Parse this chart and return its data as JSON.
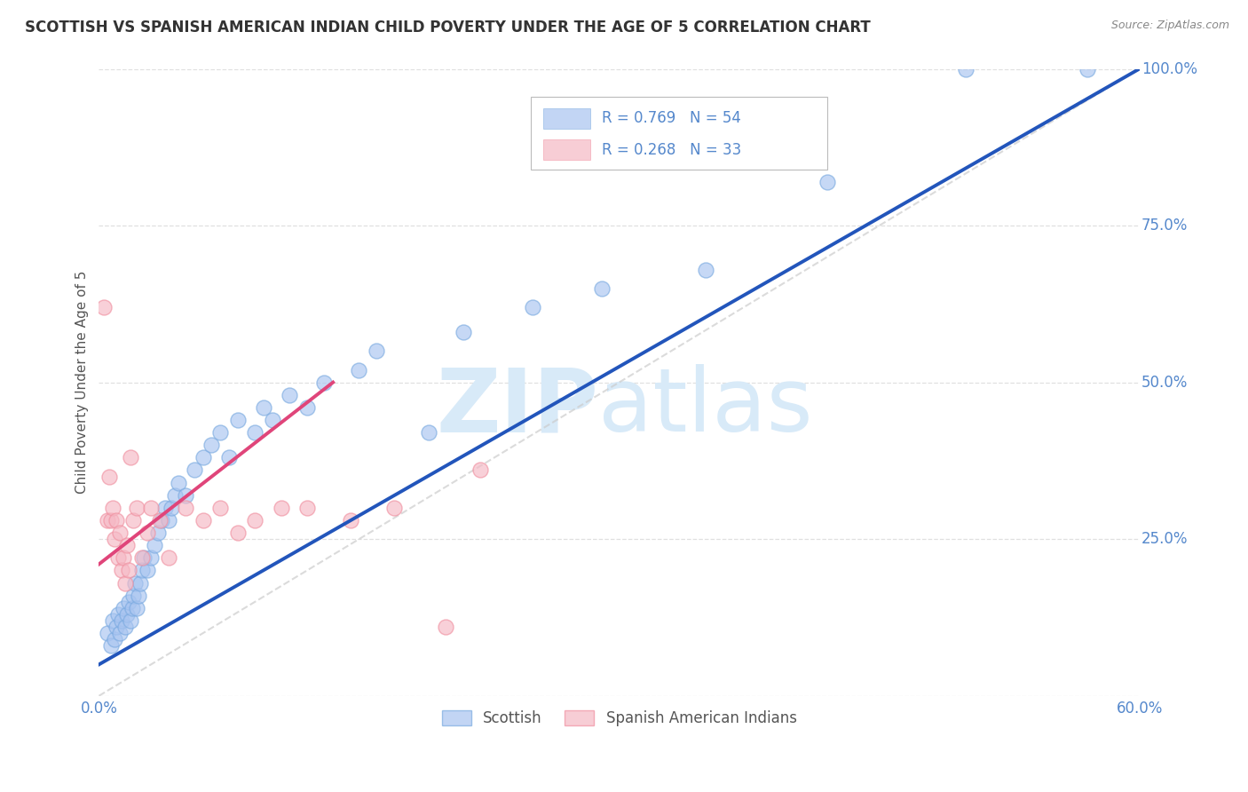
{
  "title": "SCOTTISH VS SPANISH AMERICAN INDIAN CHILD POVERTY UNDER THE AGE OF 5 CORRELATION CHART",
  "source": "Source: ZipAtlas.com",
  "ylabel": "Child Poverty Under the Age of 5",
  "xlim": [
    0,
    0.6
  ],
  "ylim": [
    0,
    1.0
  ],
  "xticks": [
    0.0,
    0.1,
    0.2,
    0.3,
    0.4,
    0.5,
    0.6
  ],
  "xticklabels": [
    "0.0%",
    "",
    "",
    "",
    "",
    "",
    "60.0%"
  ],
  "yticks": [
    0.0,
    0.25,
    0.5,
    0.75,
    1.0
  ],
  "yticklabels_right": [
    "",
    "25.0%",
    "50.0%",
    "75.0%",
    "100.0%"
  ],
  "legend_entry1": "R = 0.769   N = 54",
  "legend_entry2": "R = 0.268   N = 33",
  "legend_label1": "Scottish",
  "legend_label2": "Spanish American Indians",
  "blue_color": "#a8c4f0",
  "pink_color": "#f5b8c4",
  "blue_scatter_edge": "#7aaae0",
  "pink_scatter_edge": "#f090a0",
  "blue_line_color": "#2255bb",
  "pink_line_color": "#e0457a",
  "ref_line_color": "#cccccc",
  "grid_color": "#dddddd",
  "axis_tick_color": "#5588cc",
  "ylabel_color": "#555555",
  "title_color": "#333333",
  "source_color": "#888888",
  "watermark_zip_color": "#d8eaf8",
  "watermark_atlas_color": "#d8eaf8",
  "scottish_x": [
    0.005,
    0.007,
    0.008,
    0.009,
    0.01,
    0.011,
    0.012,
    0.013,
    0.014,
    0.015,
    0.016,
    0.017,
    0.018,
    0.019,
    0.02,
    0.021,
    0.022,
    0.023,
    0.024,
    0.025,
    0.026,
    0.028,
    0.03,
    0.032,
    0.034,
    0.036,
    0.038,
    0.04,
    0.042,
    0.044,
    0.046,
    0.05,
    0.055,
    0.06,
    0.065,
    0.07,
    0.075,
    0.08,
    0.09,
    0.095,
    0.1,
    0.11,
    0.12,
    0.13,
    0.15,
    0.16,
    0.19,
    0.21,
    0.25,
    0.29,
    0.35,
    0.42,
    0.5,
    0.57
  ],
  "scottish_y": [
    0.1,
    0.08,
    0.12,
    0.09,
    0.11,
    0.13,
    0.1,
    0.12,
    0.14,
    0.11,
    0.13,
    0.15,
    0.12,
    0.14,
    0.16,
    0.18,
    0.14,
    0.16,
    0.18,
    0.2,
    0.22,
    0.2,
    0.22,
    0.24,
    0.26,
    0.28,
    0.3,
    0.28,
    0.3,
    0.32,
    0.34,
    0.32,
    0.36,
    0.38,
    0.4,
    0.42,
    0.38,
    0.44,
    0.42,
    0.46,
    0.44,
    0.48,
    0.46,
    0.5,
    0.52,
    0.55,
    0.42,
    0.58,
    0.62,
    0.65,
    0.68,
    0.82,
    1.0,
    1.0
  ],
  "spanish_x": [
    0.003,
    0.005,
    0.006,
    0.007,
    0.008,
    0.009,
    0.01,
    0.011,
    0.012,
    0.013,
    0.014,
    0.015,
    0.016,
    0.017,
    0.018,
    0.02,
    0.022,
    0.025,
    0.028,
    0.03,
    0.035,
    0.04,
    0.05,
    0.06,
    0.07,
    0.08,
    0.09,
    0.105,
    0.12,
    0.145,
    0.17,
    0.2,
    0.22
  ],
  "spanish_y": [
    0.62,
    0.28,
    0.35,
    0.28,
    0.3,
    0.25,
    0.28,
    0.22,
    0.26,
    0.2,
    0.22,
    0.18,
    0.24,
    0.2,
    0.38,
    0.28,
    0.3,
    0.22,
    0.26,
    0.3,
    0.28,
    0.22,
    0.3,
    0.28,
    0.3,
    0.26,
    0.28,
    0.3,
    0.3,
    0.28,
    0.3,
    0.11,
    0.36
  ],
  "blue_line_x0": 0.0,
  "blue_line_y0": 0.05,
  "blue_line_x1": 0.6,
  "blue_line_y1": 1.0,
  "pink_line_x0": 0.0,
  "pink_line_y0": 0.21,
  "pink_line_x1": 0.135,
  "pink_line_y1": 0.5
}
